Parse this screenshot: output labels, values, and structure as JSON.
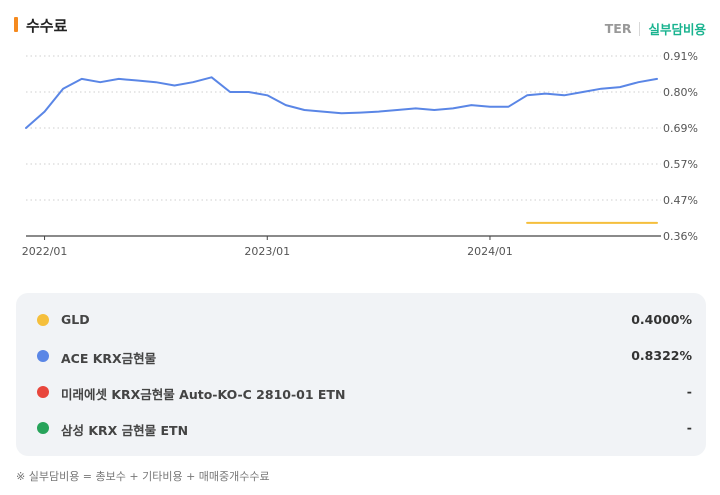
{
  "header": {
    "title": "수수료",
    "toggle": {
      "ter": "TER",
      "real": "실부담비용",
      "active": "real"
    }
  },
  "colors": {
    "accent_bar": "#f58a1f",
    "active_toggle": "#19b38f",
    "gld": "#f5bf3c",
    "ace": "#5a86e6",
    "mirae": "#e8463c",
    "samsung": "#27a35a"
  },
  "chart_data": {
    "type": "line",
    "x_ticks": [
      "2022/01",
      "2023/01",
      "2024/01"
    ],
    "y_ticks": [
      "0.91%",
      "0.80%",
      "0.69%",
      "0.57%",
      "0.47%",
      "0.36%"
    ],
    "ylim": [
      0.36,
      0.91
    ],
    "xlim": [
      "2021-12",
      "2024-10"
    ],
    "grid": "horizontal-dotted",
    "series": [
      {
        "name": "ACE KRX금현물",
        "color": "#5a86e6",
        "x": [
          "2021-12",
          "2022-01",
          "2022-02",
          "2022-03",
          "2022-04",
          "2022-05",
          "2022-06",
          "2022-07",
          "2022-08",
          "2022-09",
          "2022-10",
          "2022-11",
          "2022-12",
          "2023-01",
          "2023-02",
          "2023-03",
          "2023-04",
          "2023-05",
          "2023-06",
          "2023-07",
          "2023-08",
          "2023-09",
          "2023-10",
          "2023-11",
          "2023-12",
          "2024-01",
          "2024-02",
          "2024-03",
          "2024-04",
          "2024-05",
          "2024-06",
          "2024-07",
          "2024-08",
          "2024-09",
          "2024-10"
        ],
        "values": [
          0.69,
          0.74,
          0.81,
          0.84,
          0.83,
          0.84,
          0.835,
          0.83,
          0.82,
          0.83,
          0.845,
          0.8,
          0.8,
          0.79,
          0.76,
          0.745,
          0.74,
          0.735,
          0.737,
          0.74,
          0.745,
          0.75,
          0.745,
          0.75,
          0.76,
          0.755,
          0.755,
          0.79,
          0.795,
          0.79,
          0.8,
          0.81,
          0.815,
          0.83,
          0.84
        ]
      },
      {
        "name": "GLD",
        "color": "#f5bf3c",
        "x": [
          "2024-03",
          "2024-10"
        ],
        "values": [
          0.4,
          0.4
        ]
      }
    ]
  },
  "legend": {
    "items": [
      {
        "name": "GLD",
        "value": "0.4000%",
        "color": "#f5bf3c"
      },
      {
        "name": "ACE KRX금현물",
        "value": "0.8322%",
        "color": "#5a86e6"
      },
      {
        "name": "미래에셋 KRX금현물 Auto-KO-C 2810-01 ETN",
        "value": "-",
        "color": "#e8463c"
      },
      {
        "name": "삼성 KRX 금현물 ETN",
        "value": "-",
        "color": "#27a35a"
      }
    ]
  },
  "footnote": "※ 실부담비용 = 총보수 + 기타비용 + 매매중개수수료"
}
